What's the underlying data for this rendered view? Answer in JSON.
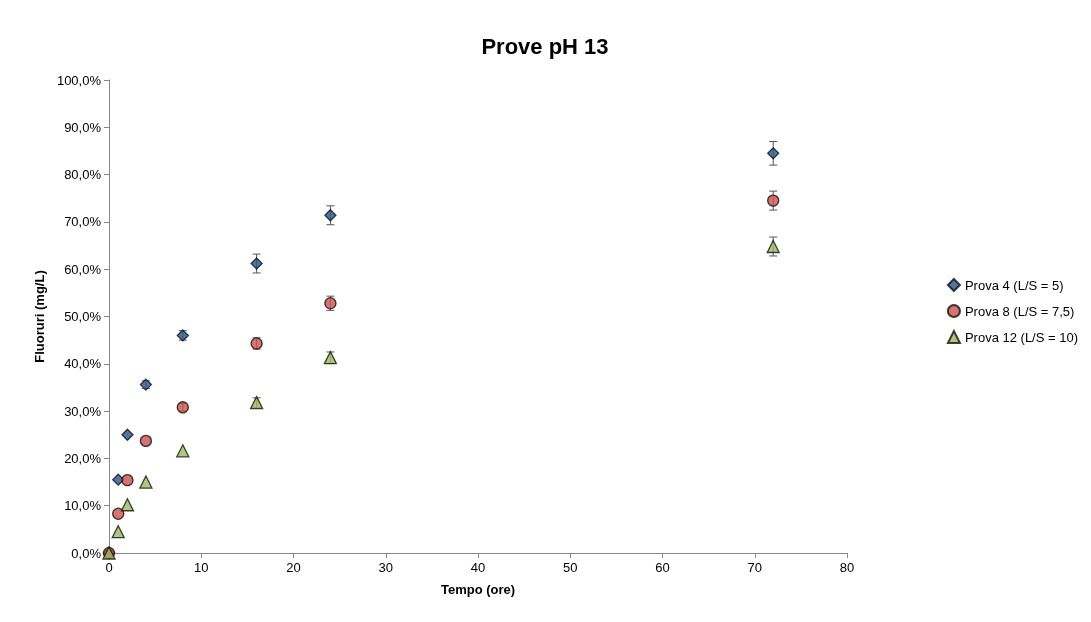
{
  "chart_data": {
    "type": "scatter",
    "title": "Prove pH 13",
    "xlabel": "Tempo (ore)",
    "ylabel": "Fluoruri (mg/L)",
    "x": [
      0,
      1,
      2,
      4,
      8,
      16,
      24,
      72
    ],
    "series": [
      {
        "name": "Prova 4 (L/S = 5)",
        "color": "#245491",
        "marker": "diamond",
        "values": [
          0,
          15.5,
          25,
          35.6,
          46,
          61.2,
          71.4,
          84.5
        ],
        "errors": [
          null,
          null,
          null,
          0.8,
          1,
          2,
          2,
          2.5
        ]
      },
      {
        "name": "Prova 8 (L/S = 7,5)",
        "color": "#d0504c",
        "marker": "circle",
        "values": [
          0,
          8.3,
          15.4,
          23.7,
          30.8,
          44.3,
          52.8,
          74.5
        ],
        "errors": [
          null,
          null,
          null,
          null,
          0.8,
          1.2,
          1.5,
          2
        ]
      },
      {
        "name": "Prova 12 (L/S = 10)",
        "color": "#9bbb59",
        "marker": "triangle",
        "values": [
          0,
          4.5,
          10.2,
          15,
          21.6,
          31.8,
          41.3,
          64.8
        ],
        "errors": [
          null,
          null,
          null,
          null,
          null,
          1,
          1.2,
          2
        ]
      }
    ],
    "xlim": [
      0,
      80
    ],
    "xticks": [
      0,
      10,
      20,
      30,
      40,
      50,
      60,
      70,
      80
    ],
    "ylim": [
      0,
      100
    ],
    "yticks": [
      {
        "value": 0,
        "label": "0,0%"
      },
      {
        "value": 10,
        "label": "10,0%"
      },
      {
        "value": 20,
        "label": "20,0%"
      },
      {
        "value": 30,
        "label": "30,0%"
      },
      {
        "value": 40,
        "label": "40,0%"
      },
      {
        "value": 50,
        "label": "50,0%"
      },
      {
        "value": 60,
        "label": "60,0%"
      },
      {
        "value": 70,
        "label": "70,0%"
      },
      {
        "value": 80,
        "label": "80,0%"
      },
      {
        "value": 90,
        "label": "90,0%"
      },
      {
        "value": 100,
        "label": "100,0%"
      }
    ],
    "grid": false,
    "legend": "right"
  }
}
